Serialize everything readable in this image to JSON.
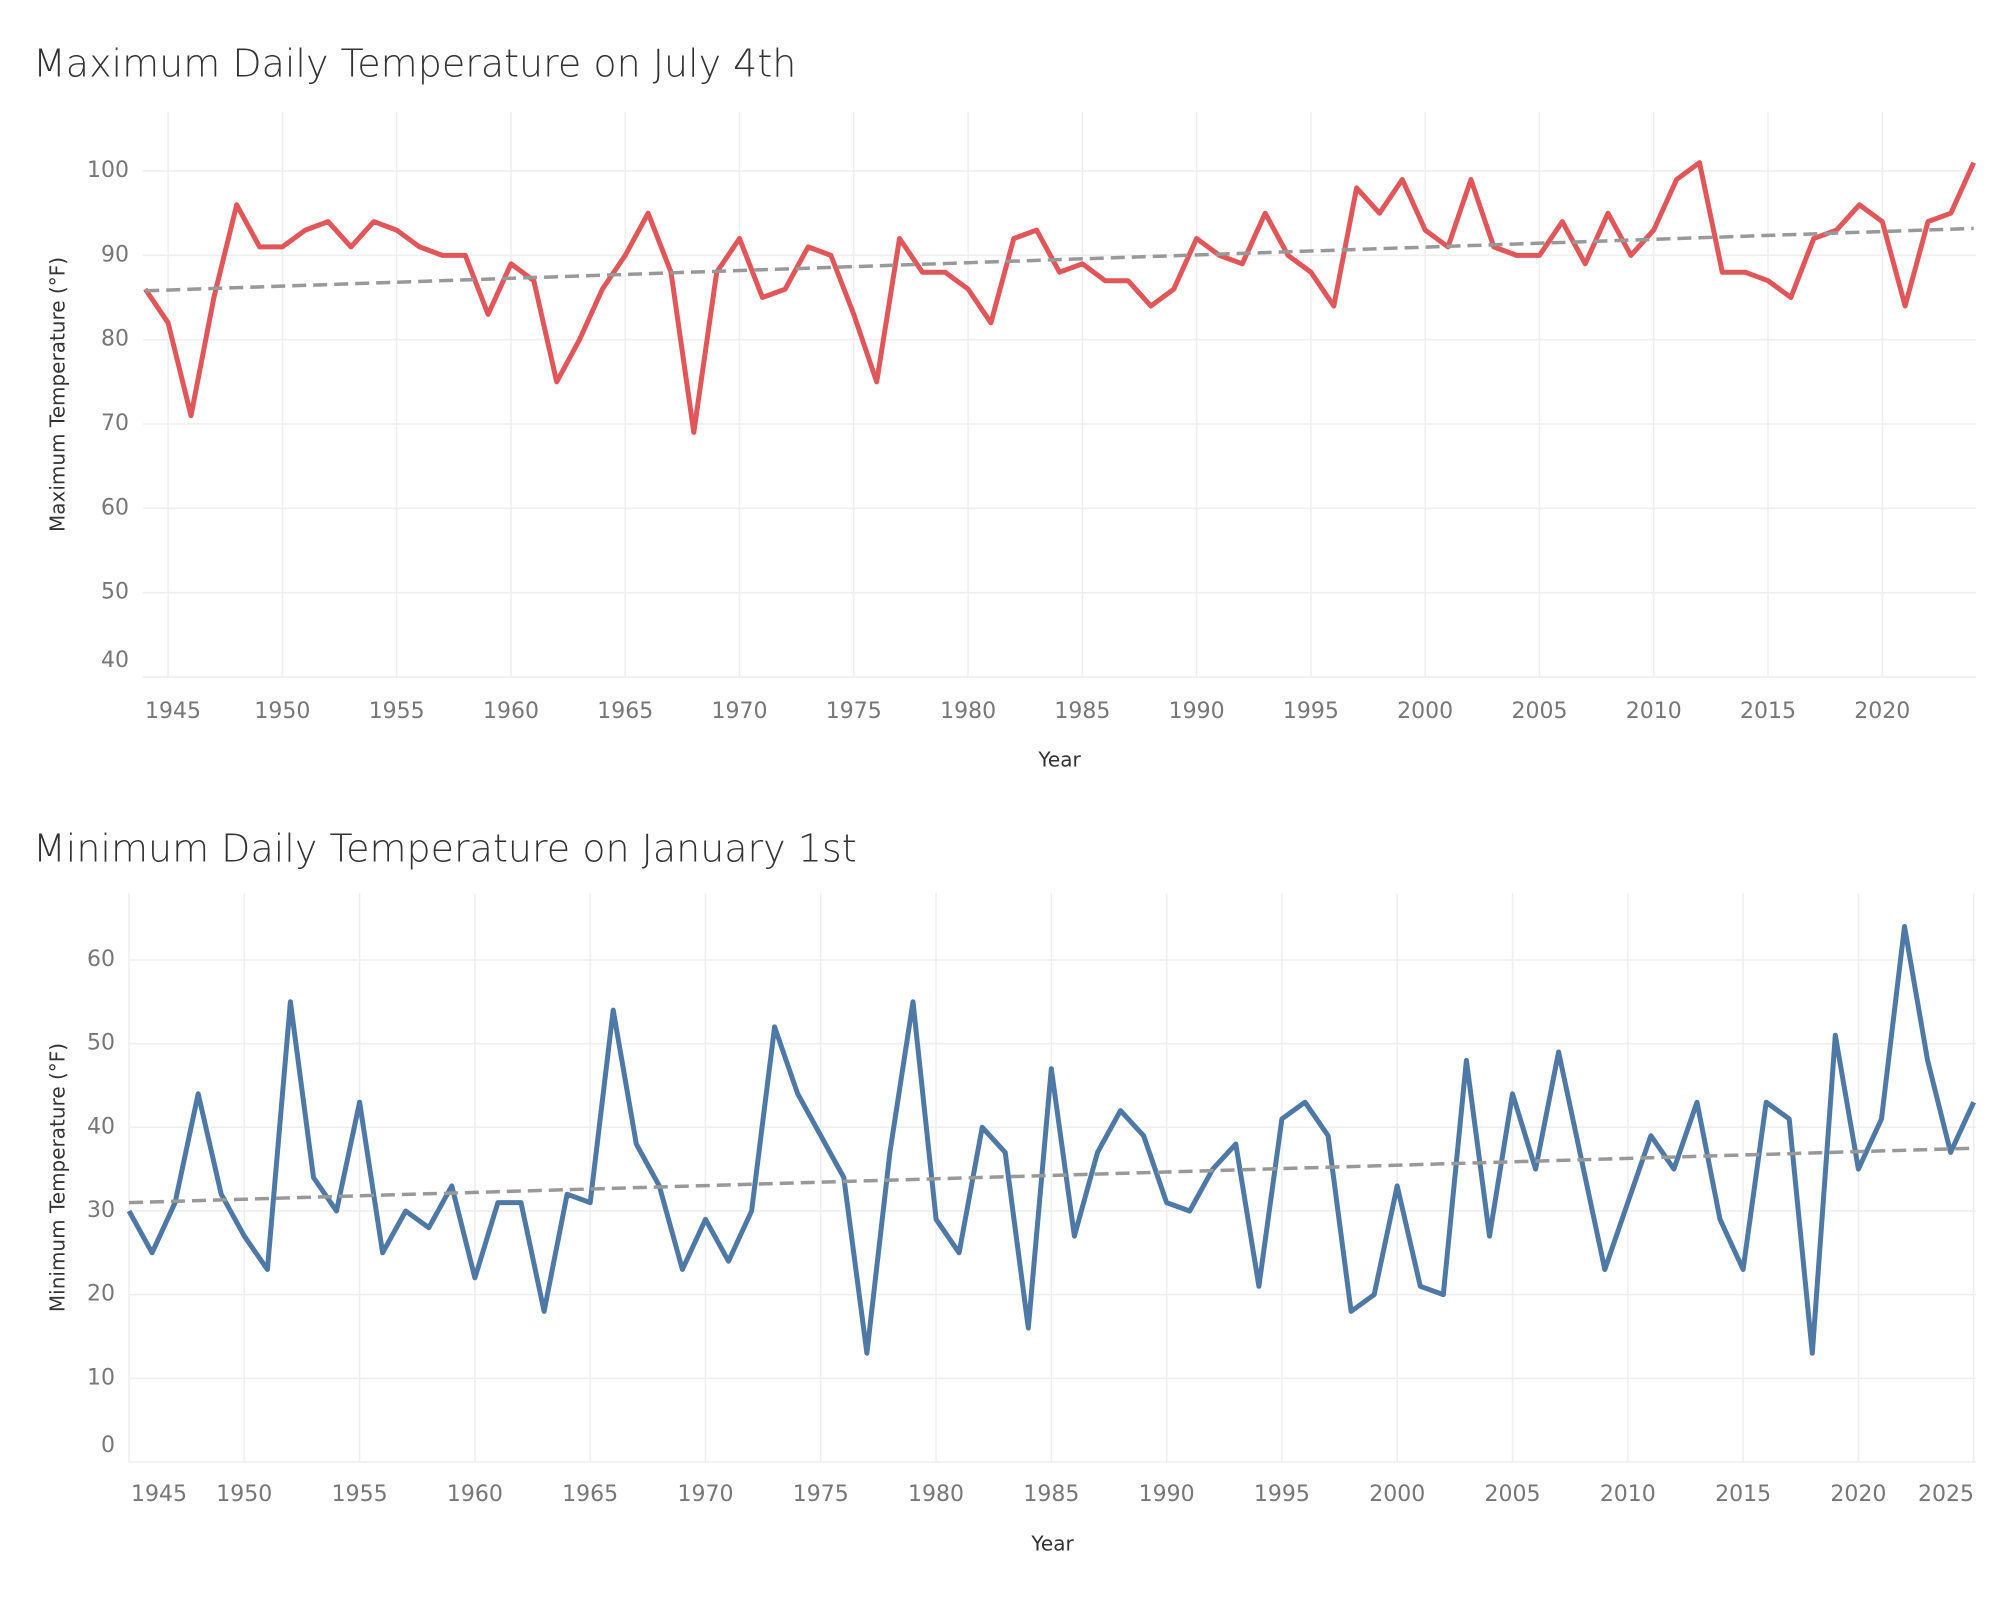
{
  "chart_data": [
    {
      "type": "line",
      "title": "Maximum Daily Temperature on July 4th",
      "x_label": "Year",
      "y_label": "Maximum Temperature (°F)",
      "x": [
        1944,
        1945,
        1946,
        1947,
        1948,
        1949,
        1950,
        1951,
        1952,
        1953,
        1954,
        1955,
        1956,
        1957,
        1958,
        1959,
        1960,
        1961,
        1962,
        1963,
        1964,
        1965,
        1966,
        1967,
        1968,
        1969,
        1970,
        1971,
        1972,
        1973,
        1974,
        1975,
        1976,
        1977,
        1978,
        1979,
        1980,
        1981,
        1982,
        1983,
        1984,
        1985,
        1986,
        1987,
        1988,
        1989,
        1990,
        1991,
        1992,
        1993,
        1994,
        1995,
        1996,
        1997,
        1998,
        1999,
        2000,
        2001,
        2002,
        2003,
        2004,
        2005,
        2006,
        2007,
        2008,
        2009,
        2010,
        2011,
        2012,
        2013,
        2014,
        2015,
        2016,
        2017,
        2018,
        2019,
        2020,
        2021,
        2022,
        2023,
        2024
      ],
      "series": [
        {
          "color": "#e15759",
          "values": [
            86,
            82,
            71,
            85,
            96,
            91,
            91,
            93,
            94,
            91,
            94,
            93,
            91,
            90,
            90,
            83,
            89,
            87,
            75,
            80,
            86,
            90,
            95,
            88,
            69,
            88,
            92,
            85,
            86,
            91,
            90,
            83,
            75,
            92,
            88,
            88,
            86,
            82,
            92,
            93,
            88,
            89,
            87,
            87,
            84,
            86,
            92,
            90,
            89,
            95,
            90,
            88,
            84,
            98,
            95,
            99,
            93,
            91,
            99,
            91,
            90,
            90,
            94,
            89,
            95,
            90,
            93,
            99,
            101,
            88,
            88,
            87,
            85,
            92,
            93,
            96,
            94,
            84,
            94,
            95,
            101
          ]
        }
      ],
      "trend": {
        "color": "#999999",
        "x": [
          1944,
          2024
        ],
        "values": [
          85.8,
          93.2
        ]
      },
      "xlim": [
        1943.9,
        2024.1
      ],
      "xticks": [
        1945,
        1950,
        1955,
        1960,
        1965,
        1970,
        1975,
        1980,
        1985,
        1990,
        1995,
        2000,
        2005,
        2010,
        2015,
        2020
      ],
      "ylim": [
        40,
        107
      ],
      "yticks": [
        40,
        50,
        60,
        70,
        80,
        90,
        100
      ],
      "grid": true
    },
    {
      "type": "line",
      "title": "Minimum Daily Temperature on January 1st",
      "x_label": "Year",
      "y_label": "Minimum Temperature (°F)",
      "x": [
        1945,
        1946,
        1947,
        1948,
        1949,
        1950,
        1951,
        1952,
        1953,
        1954,
        1955,
        1956,
        1957,
        1958,
        1959,
        1960,
        1961,
        1962,
        1963,
        1964,
        1965,
        1966,
        1967,
        1968,
        1969,
        1970,
        1971,
        1972,
        1973,
        1974,
        1975,
        1976,
        1977,
        1978,
        1979,
        1980,
        1981,
        1982,
        1983,
        1984,
        1985,
        1986,
        1987,
        1988,
        1989,
        1990,
        1991,
        1992,
        1993,
        1994,
        1995,
        1996,
        1997,
        1998,
        1999,
        2000,
        2001,
        2002,
        2003,
        2004,
        2005,
        2006,
        2007,
        2008,
        2009,
        2010,
        2011,
        2012,
        2013,
        2014,
        2015,
        2016,
        2017,
        2018,
        2019,
        2020,
        2021,
        2022,
        2023,
        2024,
        2025
      ],
      "series": [
        {
          "color": "#4e79a7",
          "values": [
            30,
            25,
            31,
            44,
            32,
            27,
            23,
            55,
            34,
            30,
            43,
            25,
            30,
            28,
            33,
            22,
            31,
            31,
            18,
            32,
            31,
            54,
            38,
            33,
            23,
            29,
            24,
            30,
            52,
            44,
            39,
            34,
            13,
            37,
            55,
            29,
            25,
            40,
            37,
            16,
            47,
            27,
            37,
            42,
            39,
            31,
            30,
            35,
            38,
            21,
            41,
            43,
            39,
            18,
            20,
            33,
            21,
            20,
            48,
            27,
            44,
            35,
            49,
            36,
            23,
            31,
            39,
            35,
            43,
            29,
            23,
            43,
            41,
            13,
            51,
            35,
            41,
            64,
            48,
            37,
            43
          ]
        }
      ],
      "trend": {
        "color": "#999999",
        "x": [
          1945,
          2025
        ],
        "values": [
          31,
          37.5
        ]
      },
      "xlim": [
        1945,
        2025.1
      ],
      "xticks": [
        1945,
        1950,
        1955,
        1960,
        1965,
        1970,
        1975,
        1980,
        1985,
        1990,
        1995,
        2000,
        2005,
        2010,
        2015,
        2020,
        2025
      ],
      "ylim": [
        0,
        68
      ],
      "yticks": [
        0,
        10,
        20,
        30,
        40,
        50,
        60
      ],
      "grid": true
    }
  ]
}
